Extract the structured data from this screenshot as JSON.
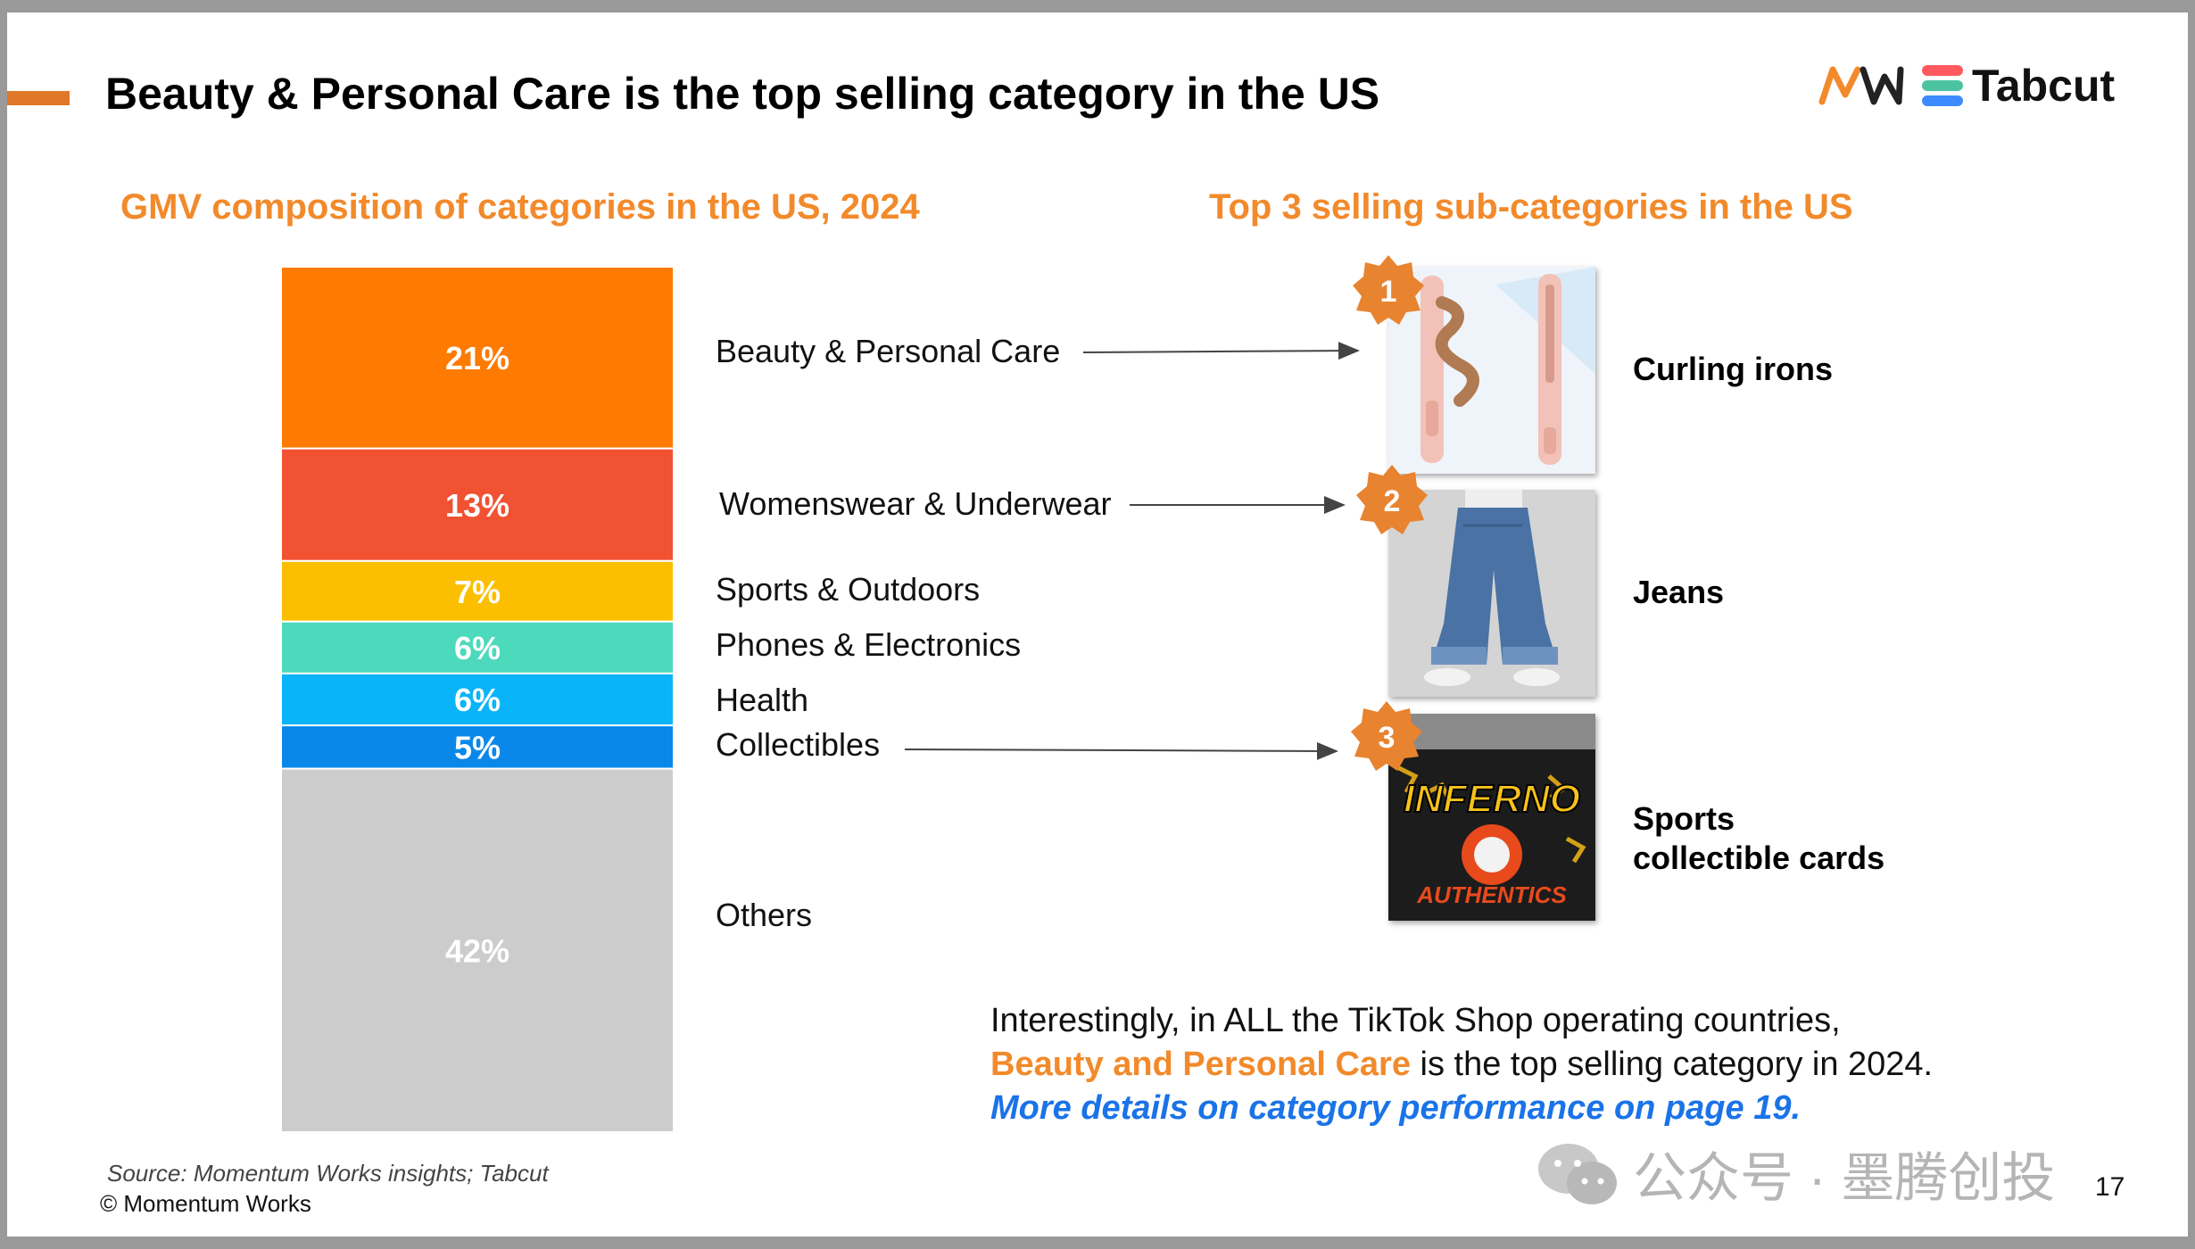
{
  "slide": {
    "title": "Beauty & Personal Care is the top selling category in the US",
    "logo_text": "Tabcut",
    "left_heading": "GMV composition of categories in the US, 2024",
    "right_heading": "Top 3 selling sub-categories in the US",
    "page_number": "17",
    "source": "Source: Momentum Works insights; Tabcut",
    "copyright": "© Momentum Works",
    "watermark": "公众号 · 墨腾创投"
  },
  "note": {
    "line1": "Interestingly, in ALL the TikTok Shop operating countries,",
    "line2_highlight": "Beauty and Personal Care",
    "line2_rest": " is the top selling category in 2024.",
    "line3": "More details on category performance on page 19."
  },
  "subcategories": [
    {
      "rank": "1",
      "name": "Curling irons"
    },
    {
      "rank": "2",
      "name": "Jeans"
    },
    {
      "rank": "3",
      "name": "Sports collectible cards",
      "name_line1": "Sports",
      "name_line2": "collectible cards"
    }
  ],
  "product_images": {
    "card_brand": "INFERNO",
    "card_sub": "AUTHENTICS"
  },
  "colors": {
    "accent": "#e0782a",
    "heading": "#f28a2b",
    "link": "#1a73e8",
    "badge": "#e8832f"
  },
  "chart_data": {
    "type": "bar",
    "stacked": true,
    "unit": "%",
    "categories": [
      "Beauty & Personal Care",
      "Womenswear & Underwear",
      "Sports & Outdoors",
      "Phones & Electronics",
      "Health",
      "Collectibles",
      "Others"
    ],
    "values": [
      21,
      13,
      7,
      6,
      6,
      5,
      42
    ],
    "labels": [
      "21%",
      "13%",
      "7%",
      "6%",
      "6%",
      "5%",
      "42%"
    ],
    "colors": [
      "#ff7a00",
      "#f05232",
      "#fbbf00",
      "#4dd9bc",
      "#0ab4f8",
      "#0a88ea",
      "#cccccc"
    ],
    "title": "GMV composition of categories in the US, 2024",
    "ylim": [
      0,
      100
    ],
    "legend": "right"
  }
}
